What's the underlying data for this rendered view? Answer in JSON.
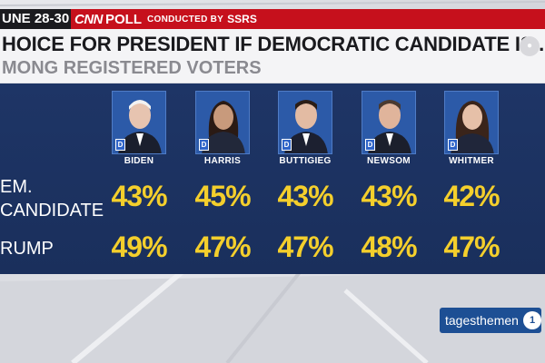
{
  "banner": {
    "date": "UNE 28-30",
    "cnn": "CNN",
    "poll": "POLL",
    "conducted": "CONDUCTED BY",
    "pollster": "SSRS"
  },
  "headline": "HOICE FOR PRESIDENT IF DEMOCRATIC CANDIDATE IS...",
  "subhead": "MONG REGISTERED VOTERS",
  "row_labels": {
    "dem_line1": "EM.",
    "dem_line2": "CANDIDATE",
    "trump": "RUMP"
  },
  "party_badge": "D",
  "candidates": [
    {
      "name": "BIDEN",
      "dem": "43%",
      "trump": "49%"
    },
    {
      "name": "HARRIS",
      "dem": "45%",
      "trump": "47%"
    },
    {
      "name": "BUTTIGIEG",
      "dem": "43%",
      "trump": "47%"
    },
    {
      "name": "NEWSOM",
      "dem": "43%",
      "trump": "48%"
    },
    {
      "name": "WHITMER",
      "dem": "42%",
      "trump": "47%"
    }
  ],
  "channel_bug": "tagesthemen",
  "colors": {
    "panel": "#1e3566",
    "percent": "#f4cf2c",
    "banner_red": "#c6101c",
    "badge_blue": "#2f64c8"
  }
}
